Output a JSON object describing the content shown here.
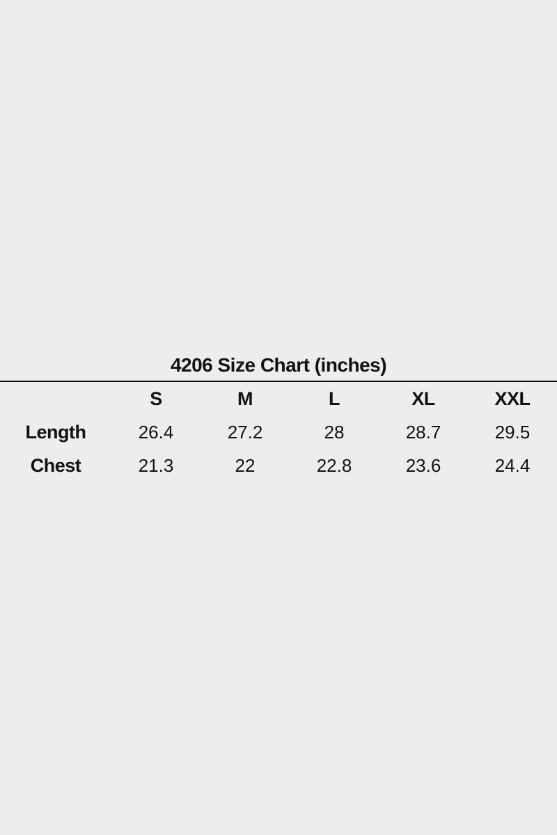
{
  "page": {
    "background_color": "#EDEDEE",
    "text_color": "#121212",
    "divider_color": "#141414"
  },
  "size_chart": {
    "title": "4206 Size Chart (inches)",
    "columns": [
      "S",
      "M",
      "L",
      "XL",
      "XXL"
    ],
    "rows": [
      {
        "label": "Length",
        "values": [
          "26.4",
          "27.2",
          "28",
          "28.7",
          "29.5"
        ]
      },
      {
        "label": "Chest",
        "values": [
          "21.3",
          "22",
          "22.8",
          "23.6",
          "24.4"
        ]
      }
    ]
  },
  "chart_data": {
    "type": "table",
    "title": "4206 Size Chart (inches)",
    "units": "inches",
    "columns": [
      "",
      "S",
      "M",
      "L",
      "XL",
      "XXL"
    ],
    "rows": [
      [
        "Length",
        26.4,
        27.2,
        28,
        28.7,
        29.5
      ],
      [
        "Chest",
        21.3,
        22,
        22.8,
        23.6,
        24.4
      ]
    ]
  }
}
